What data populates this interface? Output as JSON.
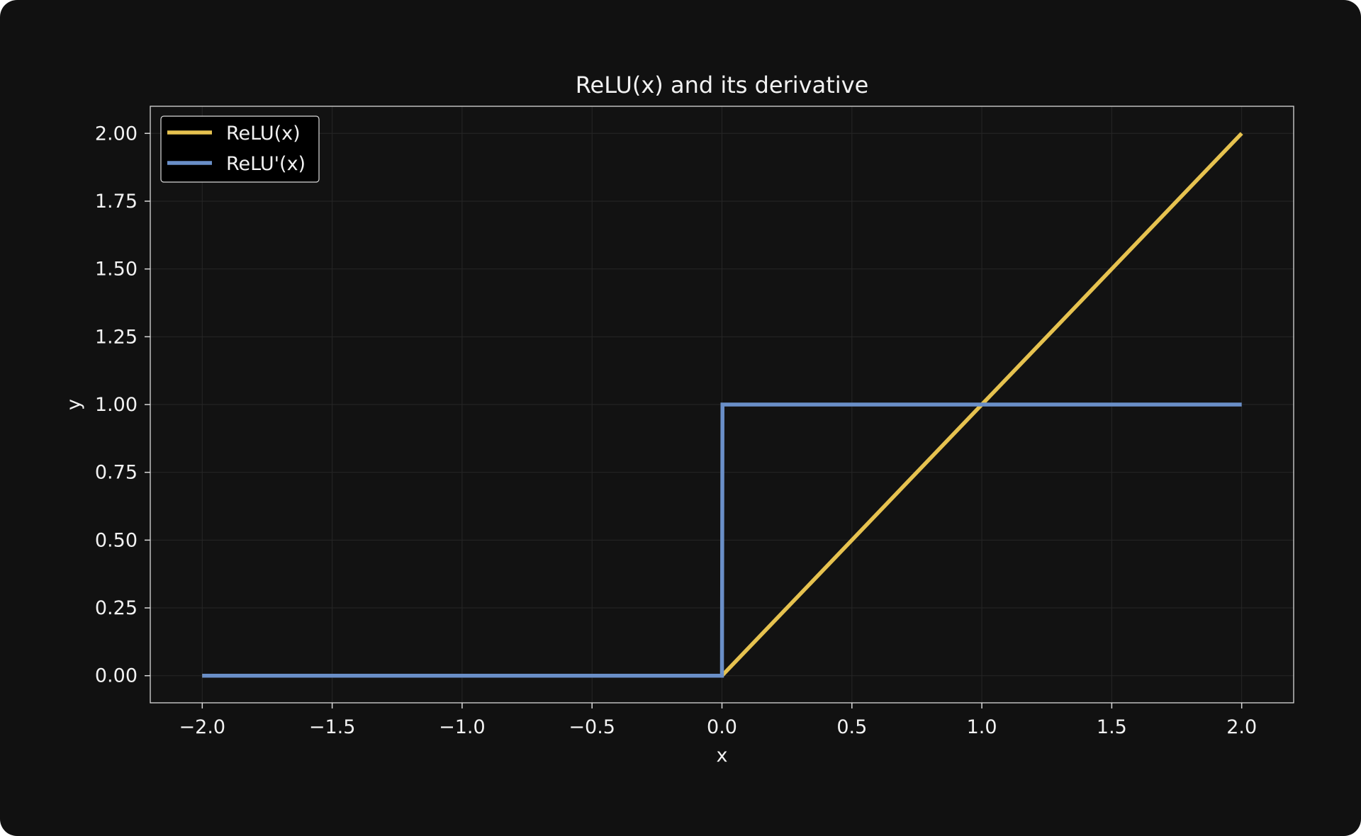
{
  "colors": {
    "background": "#111111",
    "plot_background": "#121212",
    "text": "#f2f2f2",
    "spine": "#d9d9d9",
    "grid": "#262626",
    "legend_background": "#000000"
  },
  "chart_data": {
    "type": "line",
    "title": "ReLU(x) and its derivative",
    "xlabel": "x",
    "ylabel": "y",
    "xlim": [
      -2.2,
      2.2
    ],
    "ylim": [
      -0.1,
      2.1
    ],
    "xticks": [
      -2.0,
      -1.5,
      -1.0,
      -0.5,
      0.0,
      0.5,
      1.0,
      1.5,
      2.0
    ],
    "xtick_labels": [
      "−2.0",
      "−1.5",
      "−1.0",
      "−0.5",
      "0.0",
      "0.5",
      "1.0",
      "1.5",
      "2.0"
    ],
    "yticks": [
      0.0,
      0.25,
      0.5,
      0.75,
      1.0,
      1.25,
      1.5,
      1.75,
      2.0
    ],
    "ytick_labels": [
      "0.00",
      "0.25",
      "0.50",
      "0.75",
      "1.00",
      "1.25",
      "1.50",
      "1.75",
      "2.00"
    ],
    "grid": true,
    "legend": "top-left",
    "series": [
      {
        "name": "ReLU(x)",
        "color": "#e6c24f",
        "points": [
          [
            -2.0,
            0.0
          ],
          [
            0.0,
            0.0
          ],
          [
            2.0,
            2.0
          ]
        ]
      },
      {
        "name": "ReLU'(x)",
        "color": "#6a8fc8",
        "points": [
          [
            -2.0,
            0.0
          ],
          [
            0.0,
            0.0
          ],
          [
            0.002,
            1.0
          ],
          [
            2.0,
            1.0
          ]
        ]
      }
    ]
  }
}
